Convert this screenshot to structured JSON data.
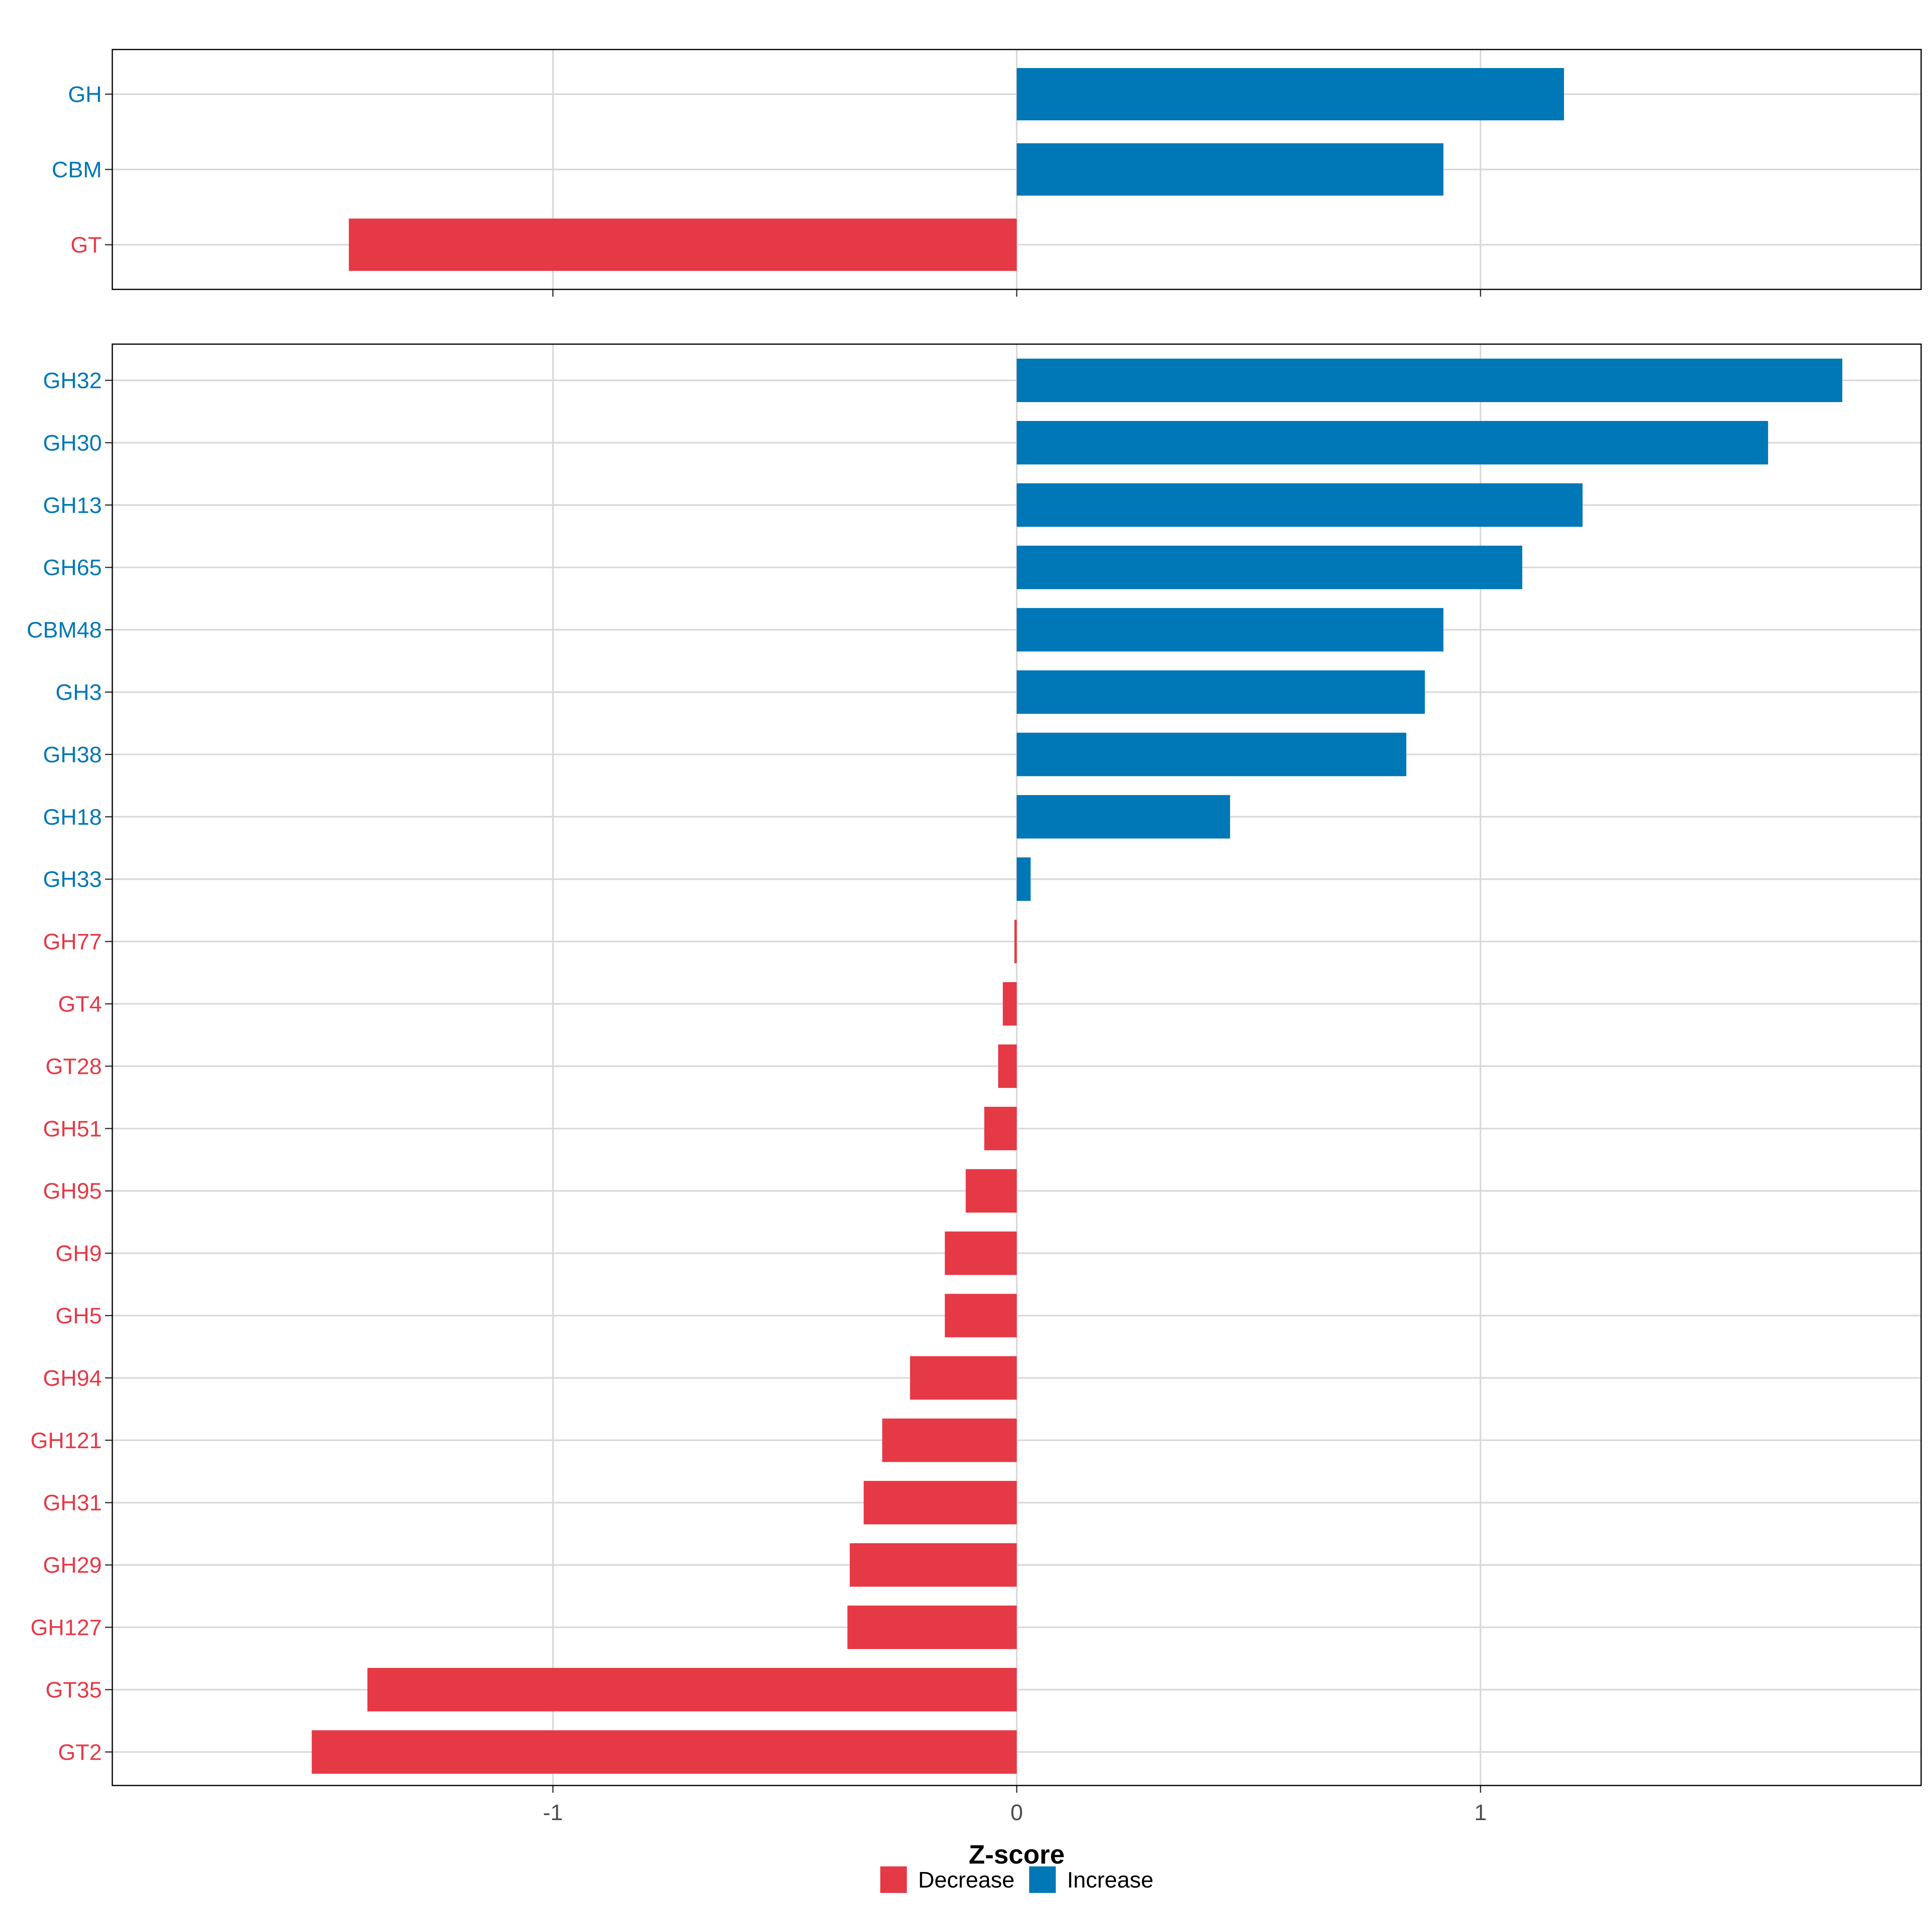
{
  "chart_data": {
    "type": "bar",
    "orientation": "horizontal",
    "xlabel": "Z-score",
    "xlim": [
      -1.95,
      1.95
    ],
    "xticks": [
      -1,
      0,
      1
    ],
    "xtick_labels": [
      "-1",
      "0",
      "1"
    ],
    "grid": true,
    "legend_position": "bottom",
    "colors": {
      "Decrease": "#e63946",
      "Increase": "#0077b6"
    },
    "legend": [
      {
        "label": "Decrease",
        "color": "#e63946"
      },
      {
        "label": "Increase",
        "color": "#0077b6"
      }
    ],
    "panels": [
      {
        "categories": [
          "GH",
          "CBM",
          "GT"
        ],
        "values": [
          1.18,
          0.92,
          -1.44
        ],
        "directions": [
          "Increase",
          "Increase",
          "Decrease"
        ]
      },
      {
        "categories": [
          "GH32",
          "GH30",
          "GH13",
          "GH65",
          "CBM48",
          "GH3",
          "GH38",
          "GH18",
          "GH33",
          "GH77",
          "GT4",
          "GT28",
          "GH51",
          "GH95",
          "GH9",
          "GH5",
          "GH94",
          "GH121",
          "GH31",
          "GH29",
          "GH127",
          "GT35",
          "GT2"
        ],
        "values": [
          1.78,
          1.62,
          1.22,
          1.09,
          0.92,
          0.88,
          0.84,
          0.46,
          0.03,
          -0.005,
          -0.03,
          -0.04,
          -0.07,
          -0.11,
          -0.155,
          -0.155,
          -0.23,
          -0.29,
          -0.33,
          -0.36,
          -0.365,
          -1.4,
          -1.52
        ],
        "directions": [
          "Increase",
          "Increase",
          "Increase",
          "Increase",
          "Increase",
          "Increase",
          "Increase",
          "Increase",
          "Increase",
          "Decrease",
          "Decrease",
          "Decrease",
          "Decrease",
          "Decrease",
          "Decrease",
          "Decrease",
          "Decrease",
          "Decrease",
          "Decrease",
          "Decrease",
          "Decrease",
          "Decrease",
          "Decrease"
        ]
      }
    ]
  }
}
